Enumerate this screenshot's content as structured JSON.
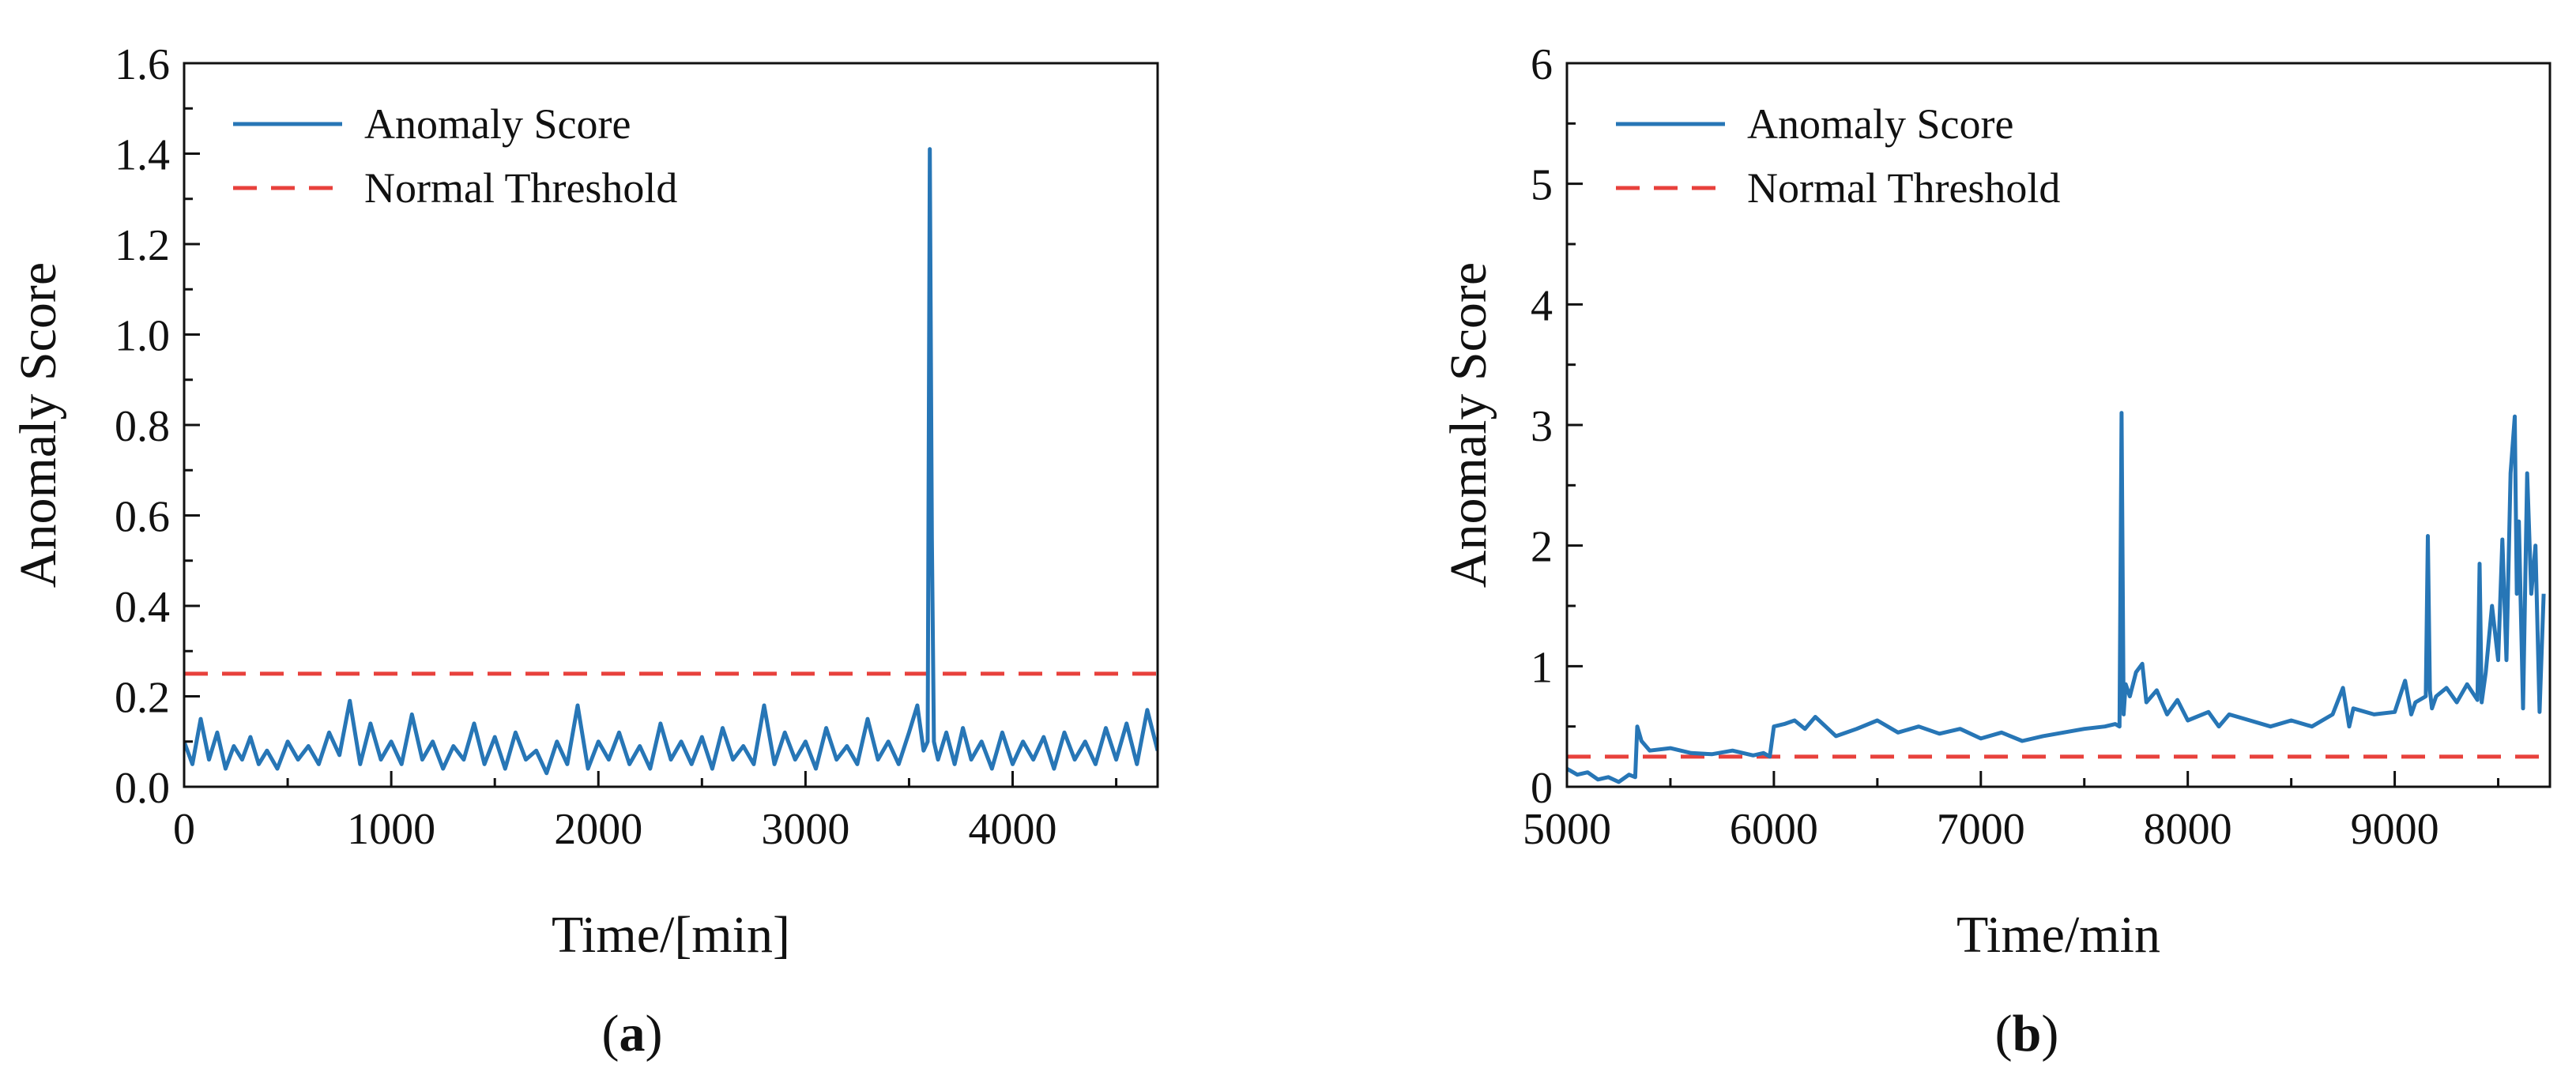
{
  "chart_data": [
    {
      "panel": "a",
      "type": "line",
      "panel_label_prefix": "(",
      "panel_label_letter": "a",
      "panel_label_suffix": ")",
      "xlabel": "Time/[min]",
      "ylabel": "Anomaly Score",
      "xlim": [
        0,
        4700
      ],
      "ylim": [
        0,
        1.6
      ],
      "xticks": [
        0,
        1000,
        2000,
        3000,
        4000
      ],
      "xtick_labels": [
        "0",
        "1000",
        "2000",
        "3000",
        "4000"
      ],
      "yticks": [
        0.0,
        0.2,
        0.4,
        0.6,
        0.8,
        1.0,
        1.2,
        1.4,
        1.6
      ],
      "ytick_labels": [
        "0.0",
        "0.2",
        "0.4",
        "0.6",
        "0.8",
        "1.0",
        "1.2",
        "1.4",
        "1.6"
      ],
      "legend_position": "top-left",
      "grid": false,
      "threshold": {
        "name": "Normal Threshold",
        "value": 0.25,
        "color": "#e8413c"
      },
      "series": [
        {
          "name": "Anomaly Score",
          "color": "#2776b6",
          "x": [
            0,
            40,
            80,
            120,
            160,
            200,
            240,
            280,
            320,
            360,
            400,
            450,
            500,
            550,
            600,
            650,
            700,
            750,
            800,
            850,
            900,
            950,
            1000,
            1050,
            1100,
            1150,
            1200,
            1250,
            1300,
            1350,
            1400,
            1450,
            1500,
            1550,
            1600,
            1650,
            1700,
            1750,
            1800,
            1850,
            1900,
            1950,
            2000,
            2050,
            2100,
            2150,
            2200,
            2250,
            2300,
            2350,
            2400,
            2450,
            2500,
            2550,
            2600,
            2650,
            2700,
            2750,
            2800,
            2850,
            2900,
            2950,
            3000,
            3050,
            3100,
            3150,
            3200,
            3250,
            3300,
            3350,
            3400,
            3450,
            3500,
            3540,
            3570,
            3590,
            3600,
            3610,
            3620,
            3640,
            3680,
            3720,
            3760,
            3800,
            3850,
            3900,
            3950,
            4000,
            4050,
            4100,
            4150,
            4200,
            4250,
            4300,
            4350,
            4400,
            4450,
            4500,
            4550,
            4600,
            4650,
            4700
          ],
          "y": [
            0.1,
            0.05,
            0.15,
            0.06,
            0.12,
            0.04,
            0.09,
            0.06,
            0.11,
            0.05,
            0.08,
            0.04,
            0.1,
            0.06,
            0.09,
            0.05,
            0.12,
            0.07,
            0.19,
            0.05,
            0.14,
            0.06,
            0.1,
            0.05,
            0.16,
            0.06,
            0.1,
            0.04,
            0.09,
            0.06,
            0.14,
            0.05,
            0.11,
            0.04,
            0.12,
            0.06,
            0.08,
            0.03,
            0.1,
            0.05,
            0.18,
            0.04,
            0.1,
            0.06,
            0.12,
            0.05,
            0.09,
            0.04,
            0.14,
            0.06,
            0.1,
            0.05,
            0.11,
            0.04,
            0.13,
            0.06,
            0.09,
            0.05,
            0.18,
            0.05,
            0.12,
            0.06,
            0.1,
            0.04,
            0.13,
            0.06,
            0.09,
            0.05,
            0.15,
            0.06,
            0.1,
            0.05,
            0.12,
            0.18,
            0.08,
            0.1,
            1.41,
            0.55,
            0.1,
            0.06,
            0.12,
            0.05,
            0.13,
            0.06,
            0.1,
            0.04,
            0.12,
            0.05,
            0.1,
            0.06,
            0.11,
            0.04,
            0.12,
            0.06,
            0.1,
            0.05,
            0.13,
            0.06,
            0.14,
            0.05,
            0.17,
            0.08
          ]
        }
      ]
    },
    {
      "panel": "b",
      "type": "line",
      "panel_label_prefix": "(",
      "panel_label_letter": "b",
      "panel_label_suffix": ")",
      "xlabel": "Time/min",
      "ylabel": "Anomaly Score",
      "xlim": [
        5000,
        9750
      ],
      "ylim": [
        0,
        6
      ],
      "xticks": [
        5000,
        6000,
        7000,
        8000,
        9000
      ],
      "xtick_labels": [
        "5000",
        "6000",
        "7000",
        "8000",
        "9000"
      ],
      "yticks": [
        0,
        1,
        2,
        3,
        4,
        5,
        6
      ],
      "ytick_labels": [
        "0",
        "1",
        "2",
        "3",
        "4",
        "5",
        "6"
      ],
      "legend_position": "top-left",
      "grid": false,
      "threshold": {
        "name": "Normal Threshold",
        "value": 0.25,
        "color": "#e8413c"
      },
      "series": [
        {
          "name": "Anomaly Score",
          "color": "#2776b6",
          "x": [
            5000,
            5050,
            5100,
            5150,
            5200,
            5250,
            5300,
            5330,
            5340,
            5360,
            5400,
            5500,
            5600,
            5700,
            5800,
            5900,
            5950,
            5980,
            6000,
            6050,
            6100,
            6150,
            6200,
            6300,
            6400,
            6500,
            6600,
            6700,
            6800,
            6900,
            7000,
            7100,
            7200,
            7300,
            7400,
            7500,
            7600,
            7650,
            7670,
            7680,
            7690,
            7700,
            7720,
            7750,
            7780,
            7800,
            7850,
            7900,
            7950,
            8000,
            8100,
            8150,
            8200,
            8300,
            8400,
            8500,
            8600,
            8700,
            8750,
            8780,
            8800,
            8900,
            9000,
            9050,
            9080,
            9100,
            9150,
            9160,
            9170,
            9180,
            9200,
            9250,
            9300,
            9350,
            9400,
            9410,
            9420,
            9440,
            9470,
            9500,
            9520,
            9540,
            9560,
            9580,
            9590,
            9600,
            9620,
            9640,
            9660,
            9680,
            9700,
            9720
          ],
          "y": [
            0.15,
            0.1,
            0.12,
            0.06,
            0.08,
            0.04,
            0.1,
            0.08,
            0.5,
            0.38,
            0.3,
            0.32,
            0.28,
            0.27,
            0.3,
            0.26,
            0.28,
            0.25,
            0.5,
            0.52,
            0.55,
            0.48,
            0.58,
            0.42,
            0.48,
            0.55,
            0.45,
            0.5,
            0.44,
            0.48,
            0.4,
            0.45,
            0.38,
            0.42,
            0.45,
            0.48,
            0.5,
            0.52,
            0.5,
            3.1,
            0.6,
            0.85,
            0.75,
            0.95,
            1.02,
            0.7,
            0.8,
            0.6,
            0.72,
            0.55,
            0.62,
            0.5,
            0.6,
            0.55,
            0.5,
            0.55,
            0.5,
            0.6,
            0.82,
            0.5,
            0.65,
            0.6,
            0.62,
            0.88,
            0.6,
            0.7,
            0.75,
            2.08,
            0.8,
            0.65,
            0.75,
            0.82,
            0.7,
            0.85,
            0.72,
            1.85,
            0.7,
            0.95,
            1.5,
            1.05,
            2.05,
            1.05,
            2.6,
            3.07,
            1.6,
            2.2,
            0.65,
            2.6,
            1.6,
            2.0,
            0.62,
            1.6
          ]
        }
      ]
    }
  ]
}
